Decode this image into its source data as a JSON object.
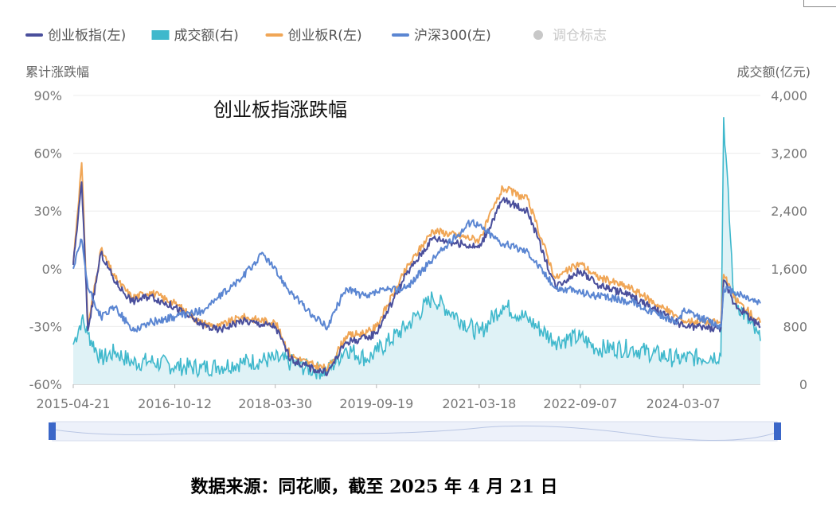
{
  "legend": [
    {
      "label": "创业板指(左)",
      "color": "#4a4f9c",
      "marker": "line",
      "enabled": true
    },
    {
      "label": "成交额(右)",
      "color": "#3fb8cc",
      "marker": "rect",
      "enabled": true
    },
    {
      "label": "创业板R(左)",
      "color": "#f0a656",
      "marker": "line",
      "enabled": true
    },
    {
      "label": "沪深300(左)",
      "color": "#5b86d2",
      "marker": "line",
      "enabled": true
    },
    {
      "label": "调仓标志",
      "color": "#c8c8c8",
      "marker": "dot",
      "enabled": false
    }
  ],
  "chart_data": {
    "type": "line",
    "title": "创业板指涨跌幅",
    "ylabel_left": "累计涨跌幅",
    "ylabel_right": "成交额(亿元)",
    "y_left_ticks": [
      "90%",
      "60%",
      "30%",
      "0%",
      "-30%",
      "-60%"
    ],
    "y_left_range": [
      -60,
      90
    ],
    "y_right_ticks": [
      "4,000",
      "3,200",
      "2,400",
      "1,600",
      "800",
      "0"
    ],
    "y_right_range": [
      0,
      4000
    ],
    "x_ticks": [
      "2015-04-21",
      "2016-10-12",
      "2018-03-30",
      "2019-09-19",
      "2021-03-18",
      "2022-09-07",
      "2024-03-07"
    ],
    "x_range": [
      "2015-04-21",
      "2025-04-21"
    ],
    "grid": true,
    "legend_position": "top",
    "series": [
      {
        "name": "创业板R(左)",
        "color": "#f0a656",
        "axis": "left",
        "x": [
          "2015-04-21",
          "2015-06-05",
          "2015-07-08",
          "2015-09-15",
          "2015-12-01",
          "2016-02-29",
          "2016-06-01",
          "2016-10-12",
          "2017-03-01",
          "2017-06-01",
          "2017-10-01",
          "2018-03-30",
          "2018-06-20",
          "2018-10-18",
          "2019-01-03",
          "2019-04-10",
          "2019-08-01",
          "2019-09-19",
          "2020-02-25",
          "2020-07-14",
          "2021-03-18",
          "2021-07-22",
          "2021-12-01",
          "2022-04-27",
          "2022-09-07",
          "2022-12-01",
          "2023-06-01",
          "2024-02-05",
          "2024-03-07",
          "2024-09-23",
          "2024-10-08",
          "2024-12-01",
          "2025-04-21"
        ],
        "values": [
          3,
          55,
          -30,
          10,
          -5,
          -15,
          -12,
          -18,
          -28,
          -30,
          -25,
          -28,
          -45,
          -50,
          -52,
          -35,
          -33,
          -30,
          0,
          20,
          15,
          42,
          36,
          -5,
          3,
          -4,
          -10,
          -25,
          -27,
          -28,
          -3,
          -15,
          -28
        ]
      },
      {
        "name": "创业板指(左)",
        "color": "#4a4f9c",
        "axis": "left",
        "x": [
          "2015-04-21",
          "2015-06-05",
          "2015-07-08",
          "2015-09-15",
          "2015-12-01",
          "2016-02-29",
          "2016-06-01",
          "2016-10-12",
          "2017-03-01",
          "2017-06-01",
          "2017-10-01",
          "2018-03-30",
          "2018-06-20",
          "2018-10-18",
          "2019-01-03",
          "2019-04-10",
          "2019-08-01",
          "2019-09-19",
          "2020-02-25",
          "2020-07-14",
          "2021-03-18",
          "2021-07-22",
          "2021-12-01",
          "2022-04-27",
          "2022-09-07",
          "2022-12-01",
          "2023-06-01",
          "2024-02-05",
          "2024-03-07",
          "2024-09-23",
          "2024-10-08",
          "2024-12-01",
          "2025-04-21"
        ],
        "values": [
          2,
          45,
          -32,
          8,
          -7,
          -17,
          -14,
          -20,
          -29,
          -32,
          -27,
          -30,
          -47,
          -52,
          -54,
          -38,
          -36,
          -33,
          -3,
          16,
          11,
          36,
          30,
          -9,
          -1,
          -8,
          -14,
          -28,
          -30,
          -31,
          -6,
          -18,
          -30
        ]
      },
      {
        "name": "沪深300(左)",
        "color": "#5b86d2",
        "axis": "left",
        "x": [
          "2015-04-21",
          "2015-06-05",
          "2015-07-08",
          "2015-09-15",
          "2015-12-01",
          "2016-02-29",
          "2016-06-01",
          "2016-10-12",
          "2017-03-01",
          "2017-06-01",
          "2017-10-01",
          "2018-01-24",
          "2018-06-20",
          "2018-10-18",
          "2019-01-03",
          "2019-04-10",
          "2019-08-01",
          "2019-09-19",
          "2020-02-25",
          "2020-07-14",
          "2021-02-10",
          "2021-07-22",
          "2021-12-01",
          "2022-04-27",
          "2022-09-07",
          "2022-12-01",
          "2023-06-01",
          "2024-02-05",
          "2024-03-07",
          "2024-09-23",
          "2024-10-08",
          "2024-12-01",
          "2025-04-21"
        ],
        "values": [
          0,
          15,
          -10,
          -25,
          -20,
          -32,
          -28,
          -25,
          -22,
          -15,
          -5,
          8,
          -12,
          -25,
          -30,
          -10,
          -15,
          -12,
          -10,
          5,
          25,
          13,
          9,
          -10,
          -12,
          -14,
          -17,
          -28,
          -22,
          -30,
          -10,
          -12,
          -18
        ]
      },
      {
        "name": "成交额(右)",
        "color": "#3fb8cc",
        "axis": "right",
        "area": true,
        "x": [
          "2015-04-21",
          "2015-06-05",
          "2015-07-08",
          "2015-09-15",
          "2015-12-01",
          "2016-02-29",
          "2016-06-01",
          "2016-10-12",
          "2017-03-01",
          "2017-06-01",
          "2017-10-01",
          "2018-03-30",
          "2018-06-20",
          "2018-10-18",
          "2019-01-03",
          "2019-04-10",
          "2019-08-01",
          "2019-09-19",
          "2020-02-25",
          "2020-07-14",
          "2021-03-18",
          "2021-07-22",
          "2021-12-01",
          "2022-04-27",
          "2022-09-07",
          "2022-12-01",
          "2023-06-01",
          "2024-02-05",
          "2024-09-23",
          "2024-10-08",
          "2024-12-01",
          "2025-04-21"
        ],
        "values": [
          550,
          900,
          700,
          350,
          450,
          300,
          320,
          250,
          230,
          250,
          300,
          350,
          300,
          200,
          180,
          500,
          350,
          450,
          800,
          1200,
          700,
          1100,
          900,
          600,
          650,
          500,
          500,
          350,
          400,
          3700,
          1200,
          600
        ]
      }
    ]
  },
  "source_text": "数据来源：同花顺，截至 2025 年 4 月 21 日"
}
